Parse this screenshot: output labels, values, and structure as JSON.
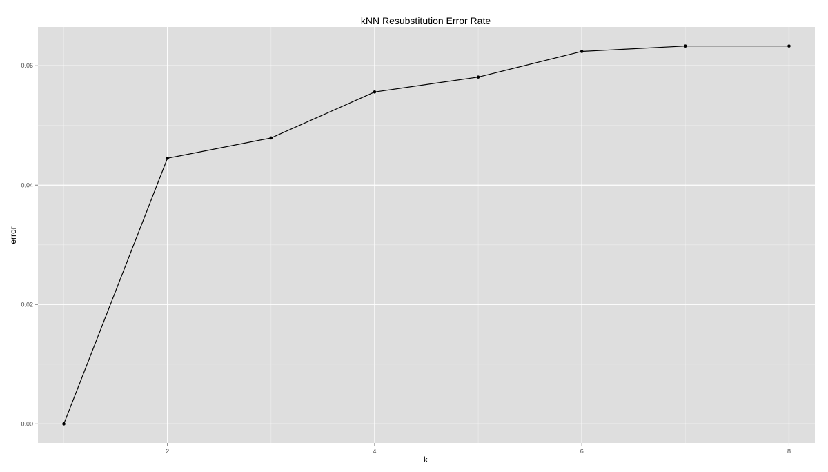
{
  "chart_data": {
    "type": "line",
    "title": "kNN Resubstitution Error Rate",
    "xlabel": "k",
    "ylabel": "error",
    "x": [
      1,
      2,
      3,
      4,
      5,
      6,
      7,
      8
    ],
    "y": [
      0.0,
      0.0445,
      0.0479,
      0.0556,
      0.0581,
      0.0624,
      0.0633,
      0.0633
    ],
    "xlim": [
      0.75,
      8.25
    ],
    "ylim": [
      -0.0032,
      0.0665
    ],
    "x_ticks": [
      2,
      4,
      6,
      8
    ],
    "x_tick_labels": [
      "2",
      "4",
      "6",
      "8"
    ],
    "y_ticks": [
      0.0,
      0.02,
      0.04,
      0.06
    ],
    "y_tick_labels": [
      "0.00",
      "0.02",
      "0.04",
      "0.06"
    ],
    "grid": true,
    "legend": "none",
    "panel_color": "#dedede",
    "grid_color": "#ffffff",
    "line_color": "#000000",
    "point_color": "#000000"
  }
}
